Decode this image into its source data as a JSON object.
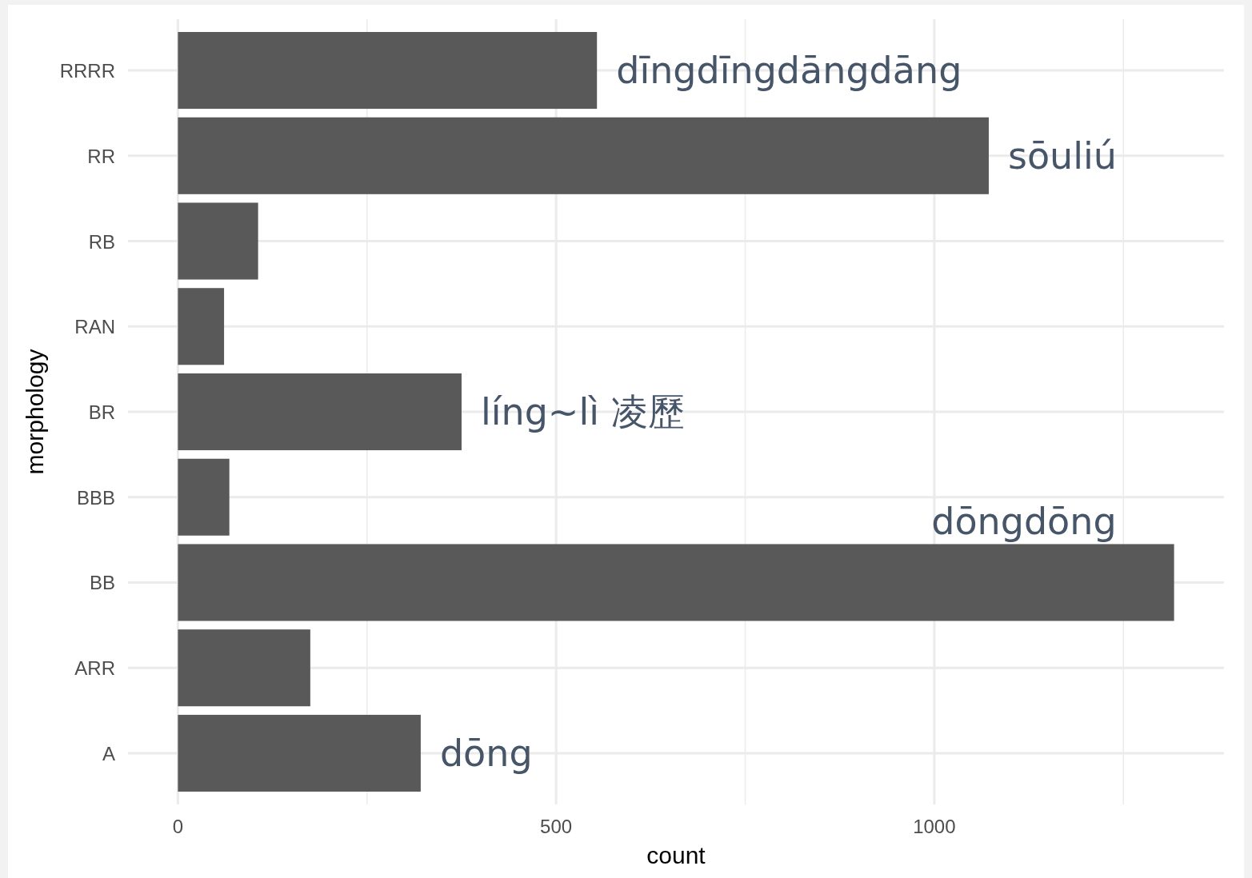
{
  "chart_data": {
    "type": "bar",
    "orientation": "horizontal",
    "xlabel": "count",
    "ylabel": "morphology",
    "categories": [
      "RRRR",
      "RR",
      "RB",
      "RAN",
      "BR",
      "BBB",
      "BB",
      "ARR",
      "A"
    ],
    "values": [
      554,
      1072,
      106,
      61,
      375,
      68,
      1317,
      175,
      321
    ],
    "color": "#595959",
    "xlim": [
      -66,
      1383
    ],
    "xticks": [
      0,
      {
        "value": 250,
        "label": null
      },
      500,
      {
        "value": 750,
        "label": null
      },
      1000,
      {
        "value": 1250,
        "label": null
      }
    ],
    "grid": true,
    "annotations": [
      {
        "text": "dīngdīngdāngdāng",
        "x": 554,
        "y": "RRRR"
      },
      {
        "text": "sōuliú",
        "x": 1072,
        "y": "RR"
      },
      {
        "text": "líng~lì 凌歷",
        "x": 375,
        "y": "BR"
      },
      {
        "text": "dōngdōng",
        "x": 1317,
        "y": "BB"
      },
      {
        "text": "dōng",
        "x": 321,
        "y": "A"
      }
    ]
  }
}
